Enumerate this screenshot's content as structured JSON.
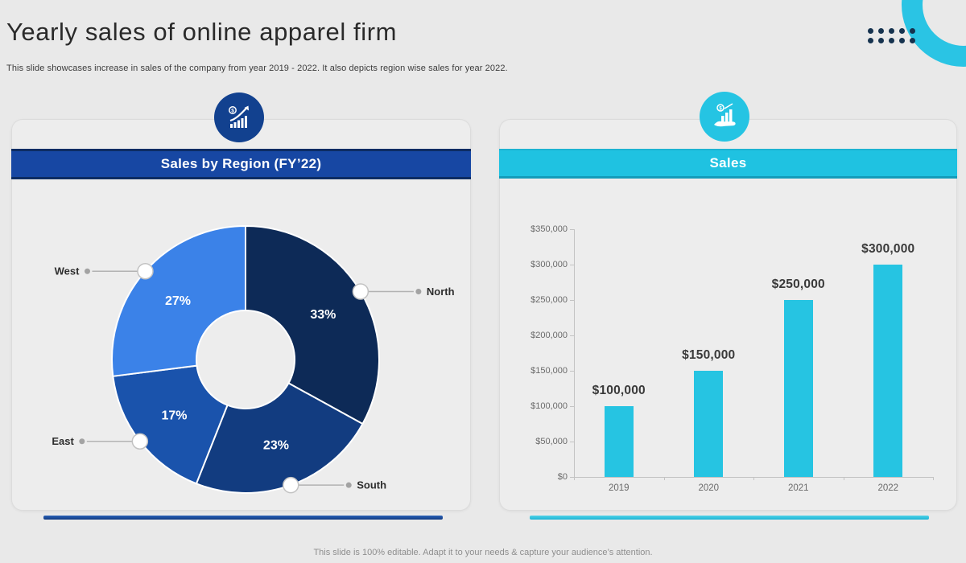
{
  "slide": {
    "title": "Yearly sales of online apparel firm",
    "subtitle": "This slide showcases increase in sales of the company from year 2019 - 2022. It also depicts region wise sales for year 2022.",
    "footer": "This slide is 100% editable. Adapt it to your needs & capture your audience’s attention."
  },
  "left_panel": {
    "header": "Sales by Region (FY’22)",
    "icon": "growth-chart-icon",
    "accent_color": "#1747a3"
  },
  "right_panel": {
    "header": "Sales",
    "icon": "hand-sales-icon",
    "accent_color": "#1fc2e1"
  },
  "decor": {
    "ring_color": "#2ac4e4",
    "dot_color": "#16334f",
    "dot_count": 10
  },
  "chart_data": [
    {
      "type": "pie",
      "title": "Sales by Region (FY’22)",
      "donut": true,
      "start_angle_deg": 0,
      "direction": "clockwise",
      "labels": [
        "North",
        "South",
        "East",
        "West"
      ],
      "values": [
        33,
        23,
        17,
        27
      ],
      "value_labels": [
        "33%",
        "23%",
        "17%",
        "27%"
      ],
      "colors": [
        "#0d2a57",
        "#123c80",
        "#1a53ac",
        "#3b82e8"
      ],
      "callout_sides": {
        "North": "right",
        "South": "right",
        "East": "left",
        "West": "left"
      }
    },
    {
      "type": "bar",
      "title": "Sales",
      "categories": [
        "2019",
        "2020",
        "2021",
        "2022"
      ],
      "values": [
        100000,
        150000,
        250000,
        300000
      ],
      "value_labels": [
        "$100,000",
        "$150,000",
        "$250,000",
        "$300,000"
      ],
      "bar_color": "#26c4e2",
      "xlabel": "",
      "ylabel": "",
      "ylim": [
        0,
        350000
      ],
      "ytick_step": 50000,
      "yticks_top_to_bottom": [
        "$350,000",
        "$300,000",
        "$250,000",
        "$200,000",
        "$150,000",
        "$100,000",
        "$50,000",
        "$0"
      ],
      "grid": false,
      "legend": false
    }
  ]
}
